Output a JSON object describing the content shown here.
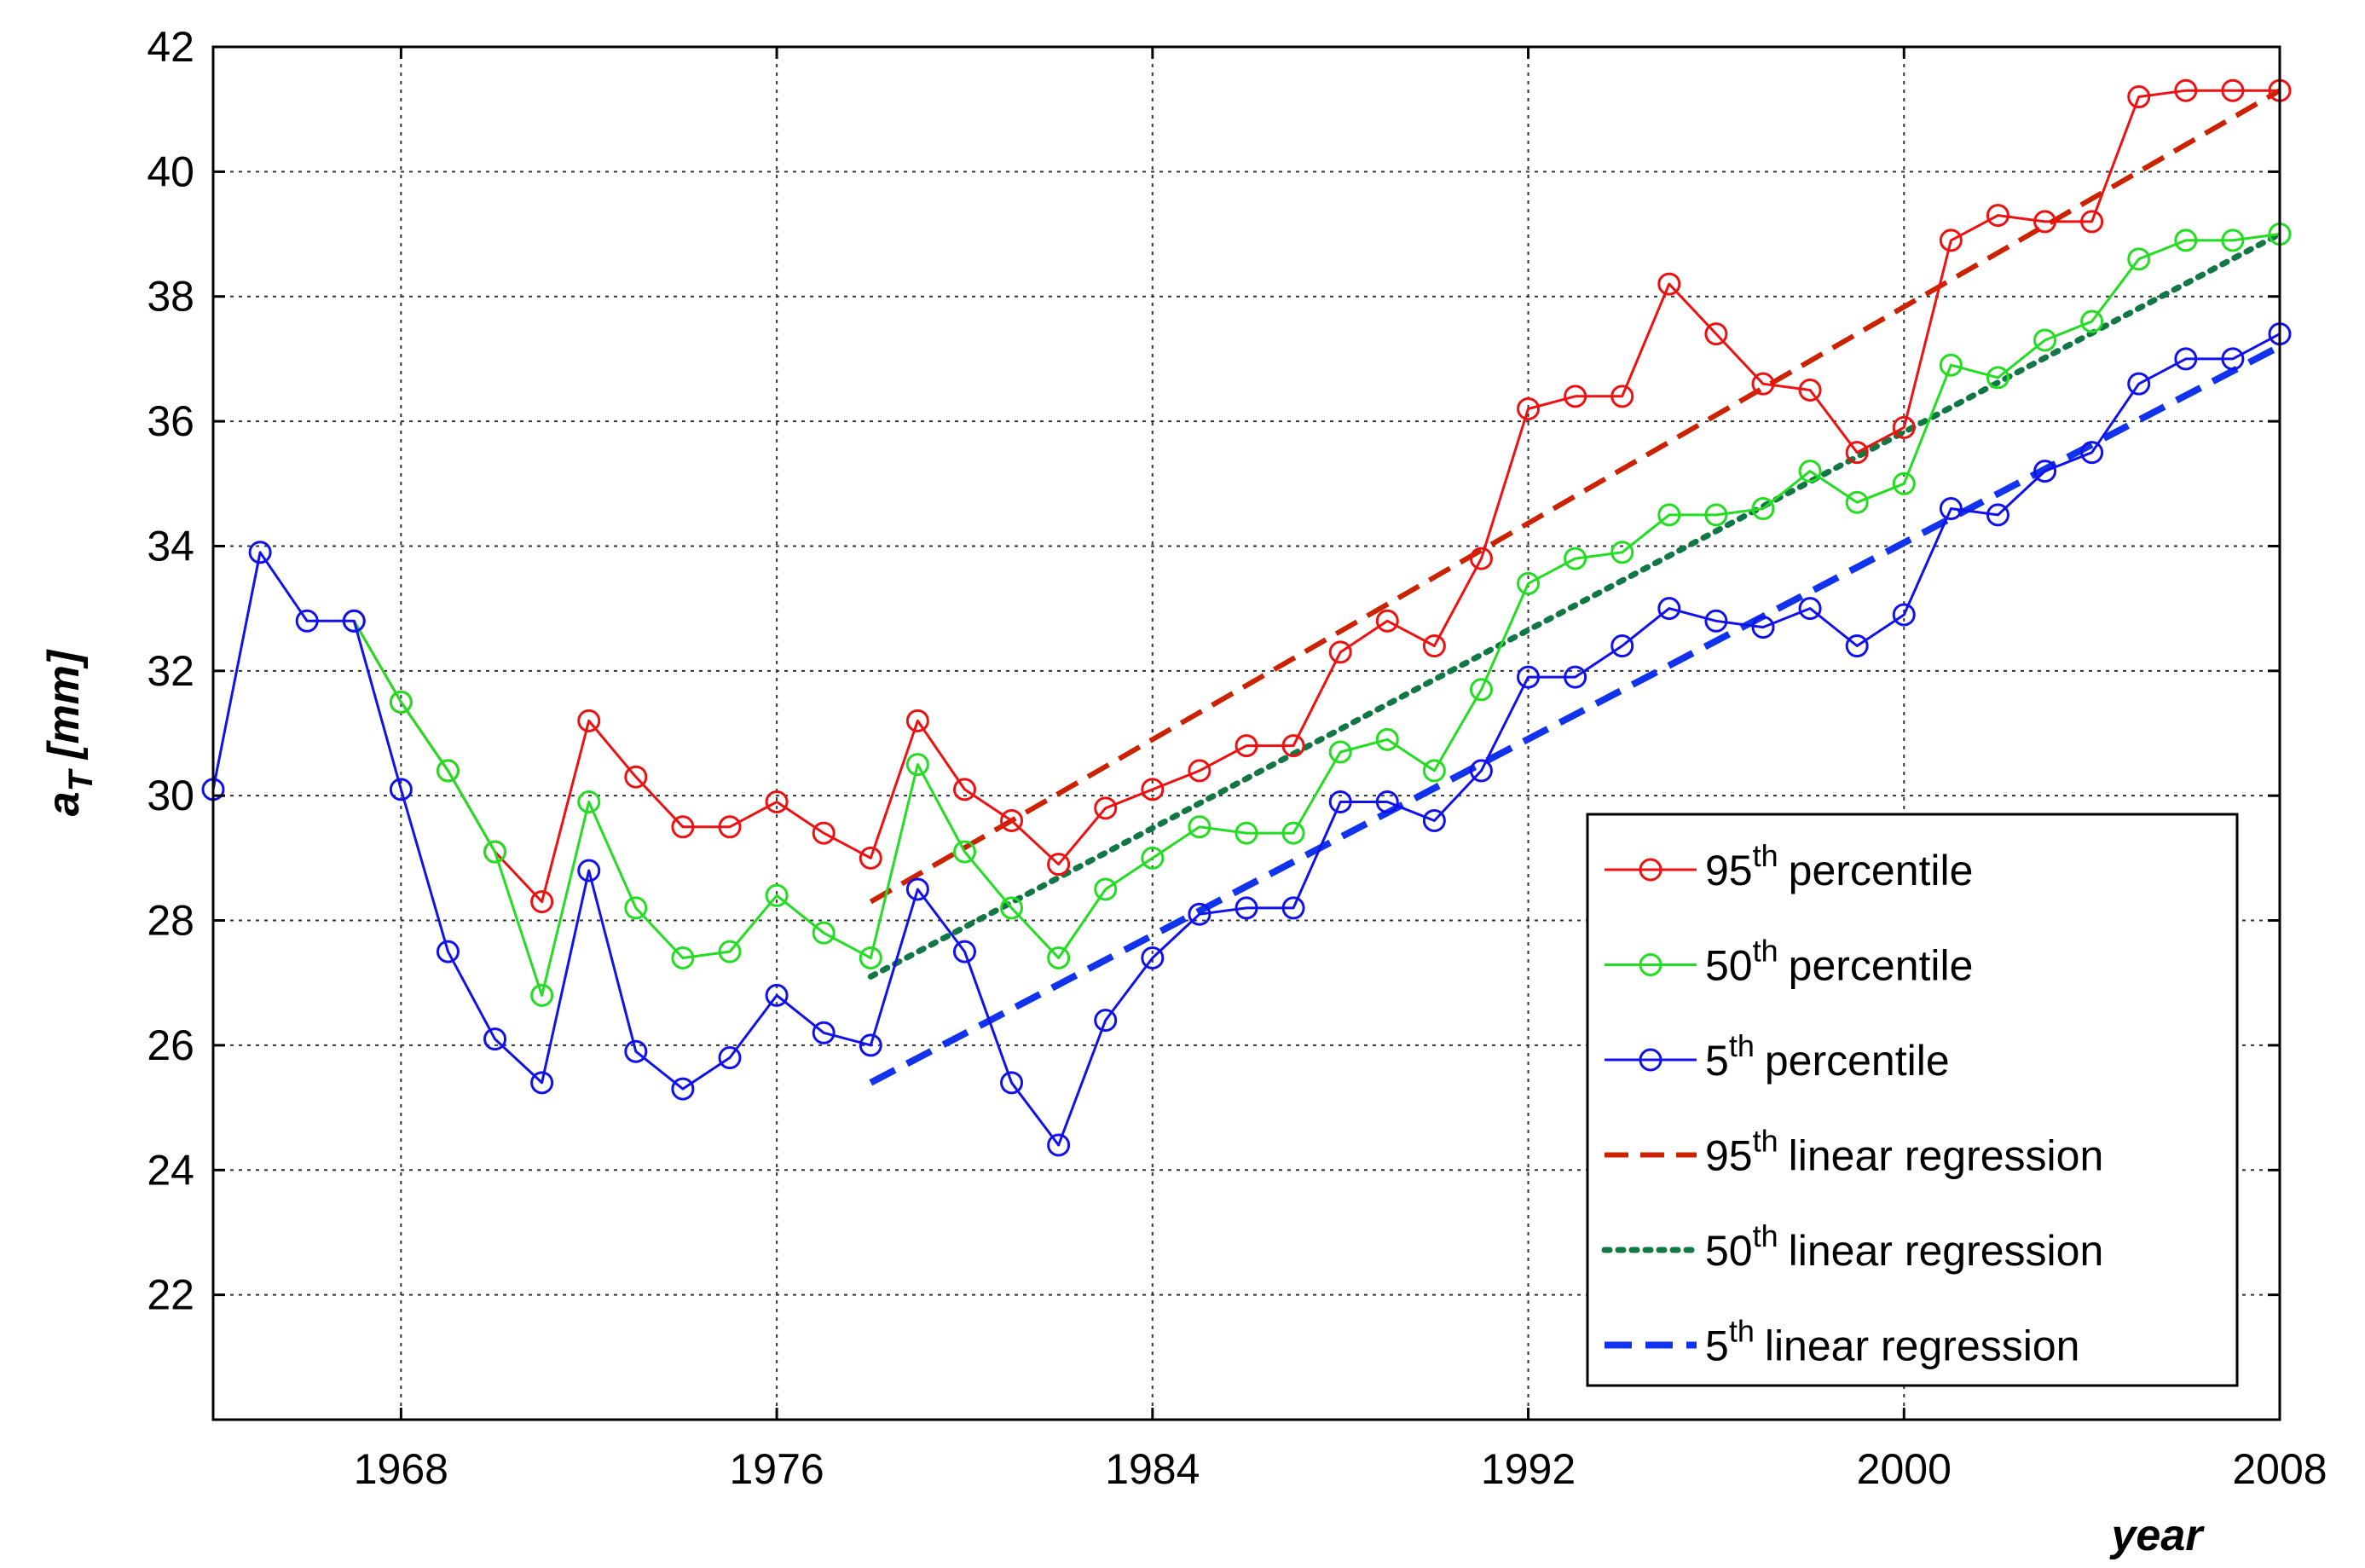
{
  "chart_data": {
    "type": "line",
    "xlabel": "year",
    "ylabel_main": "a",
    "ylabel_sub": "T",
    "ylabel_unit": "[mm]",
    "xlim": [
      1964,
      2008
    ],
    "ylim": [
      20,
      42
    ],
    "x_ticks": [
      1968,
      1976,
      1984,
      1992,
      2000,
      2008
    ],
    "y_ticks": [
      22,
      24,
      26,
      28,
      30,
      32,
      34,
      36,
      38,
      40,
      42
    ],
    "grid": true,
    "legend_position": "bottom-right",
    "series": [
      {
        "name_main": "95",
        "name_sup": "th",
        "name_rest": "percentile",
        "color": "#ee1111",
        "style": "solid-marker",
        "x": [
          1967,
          1968,
          1969,
          1970,
          1971,
          1972,
          1973,
          1974,
          1975,
          1976,
          1977,
          1978,
          1979,
          1980,
          1981,
          1982,
          1983,
          1984,
          1985,
          1986,
          1987,
          1988,
          1989,
          1990,
          1991,
          1992,
          1993,
          1994,
          1995,
          1996,
          1997,
          1998,
          1999,
          2000,
          2001,
          2002,
          2003,
          2004,
          2005,
          2006,
          2007,
          2008
        ],
        "y": [
          32.8,
          31.5,
          30.4,
          29.1,
          28.3,
          31.2,
          30.3,
          29.5,
          29.5,
          29.9,
          29.4,
          29.0,
          31.2,
          30.1,
          29.6,
          28.9,
          29.8,
          30.1,
          30.4,
          30.8,
          30.8,
          32.3,
          32.8,
          32.4,
          33.8,
          36.2,
          36.4,
          36.4,
          38.2,
          37.4,
          36.6,
          36.5,
          35.5,
          35.9,
          38.9,
          39.3,
          39.2,
          39.2,
          41.2,
          41.3,
          41.3,
          41.3
        ]
      },
      {
        "name_main": "50",
        "name_sup": "th",
        "name_rest": "percentile",
        "color": "#22dd22",
        "style": "solid-marker",
        "x": [
          1967,
          1968,
          1969,
          1970,
          1971,
          1972,
          1973,
          1974,
          1975,
          1976,
          1977,
          1978,
          1979,
          1980,
          1981,
          1982,
          1983,
          1984,
          1985,
          1986,
          1987,
          1988,
          1989,
          1990,
          1991,
          1992,
          1993,
          1994,
          1995,
          1996,
          1997,
          1998,
          1999,
          2000,
          2001,
          2002,
          2003,
          2004,
          2005,
          2006,
          2007,
          2008
        ],
        "y": [
          32.8,
          31.5,
          30.4,
          29.1,
          26.8,
          29.9,
          28.2,
          27.4,
          27.5,
          28.4,
          27.8,
          27.4,
          30.5,
          29.1,
          28.2,
          27.4,
          28.5,
          29.0,
          29.5,
          29.4,
          29.4,
          30.7,
          30.9,
          30.4,
          31.7,
          33.4,
          33.8,
          33.9,
          34.5,
          34.5,
          34.6,
          35.2,
          34.7,
          35.0,
          36.9,
          36.7,
          37.3,
          37.6,
          38.6,
          38.9,
          38.9,
          39.0
        ]
      },
      {
        "name_main": "5",
        "name_sup": "th",
        "name_rest": "percentile",
        "color": "#1111ee",
        "style": "solid-marker",
        "x": [
          1964,
          1965,
          1966,
          1967,
          1968,
          1969,
          1970,
          1971,
          1972,
          1973,
          1974,
          1975,
          1976,
          1977,
          1978,
          1979,
          1980,
          1981,
          1982,
          1983,
          1984,
          1985,
          1986,
          1987,
          1988,
          1989,
          1990,
          1991,
          1992,
          1993,
          1994,
          1995,
          1996,
          1997,
          1998,
          1999,
          2000,
          2001,
          2002,
          2003,
          2004,
          2005,
          2006,
          2007,
          2008
        ],
        "y": [
          30.1,
          33.9,
          32.8,
          32.8,
          30.1,
          27.5,
          26.1,
          25.4,
          28.8,
          25.9,
          25.3,
          25.8,
          26.8,
          26.2,
          26.0,
          28.5,
          27.5,
          25.4,
          24.4,
          26.4,
          27.4,
          28.1,
          28.2,
          28.2,
          29.9,
          29.9,
          29.6,
          30.4,
          31.9,
          31.9,
          32.4,
          33.0,
          32.8,
          32.7,
          33.0,
          32.4,
          32.9,
          34.6,
          34.5,
          35.2,
          35.5,
          36.6,
          37.0,
          37.0,
          37.4
        ]
      },
      {
        "name_main": "95",
        "name_sup": "th",
        "name_rest": "linear regression",
        "color": "#cc2200",
        "style": "dashed",
        "x": [
          1978,
          2008
        ],
        "y": [
          28.3,
          41.3
        ]
      },
      {
        "name_main": "50",
        "name_sup": "th",
        "name_rest": "linear regression",
        "color": "#117744",
        "style": "dotted",
        "x": [
          1978,
          2008
        ],
        "y": [
          27.1,
          39.0
        ]
      },
      {
        "name_main": "5",
        "name_sup": "th",
        "name_rest": "linear regression",
        "color": "#1133ee",
        "style": "bold-dashed",
        "x": [
          1978,
          2008
        ],
        "y": [
          25.4,
          37.2
        ]
      }
    ]
  }
}
